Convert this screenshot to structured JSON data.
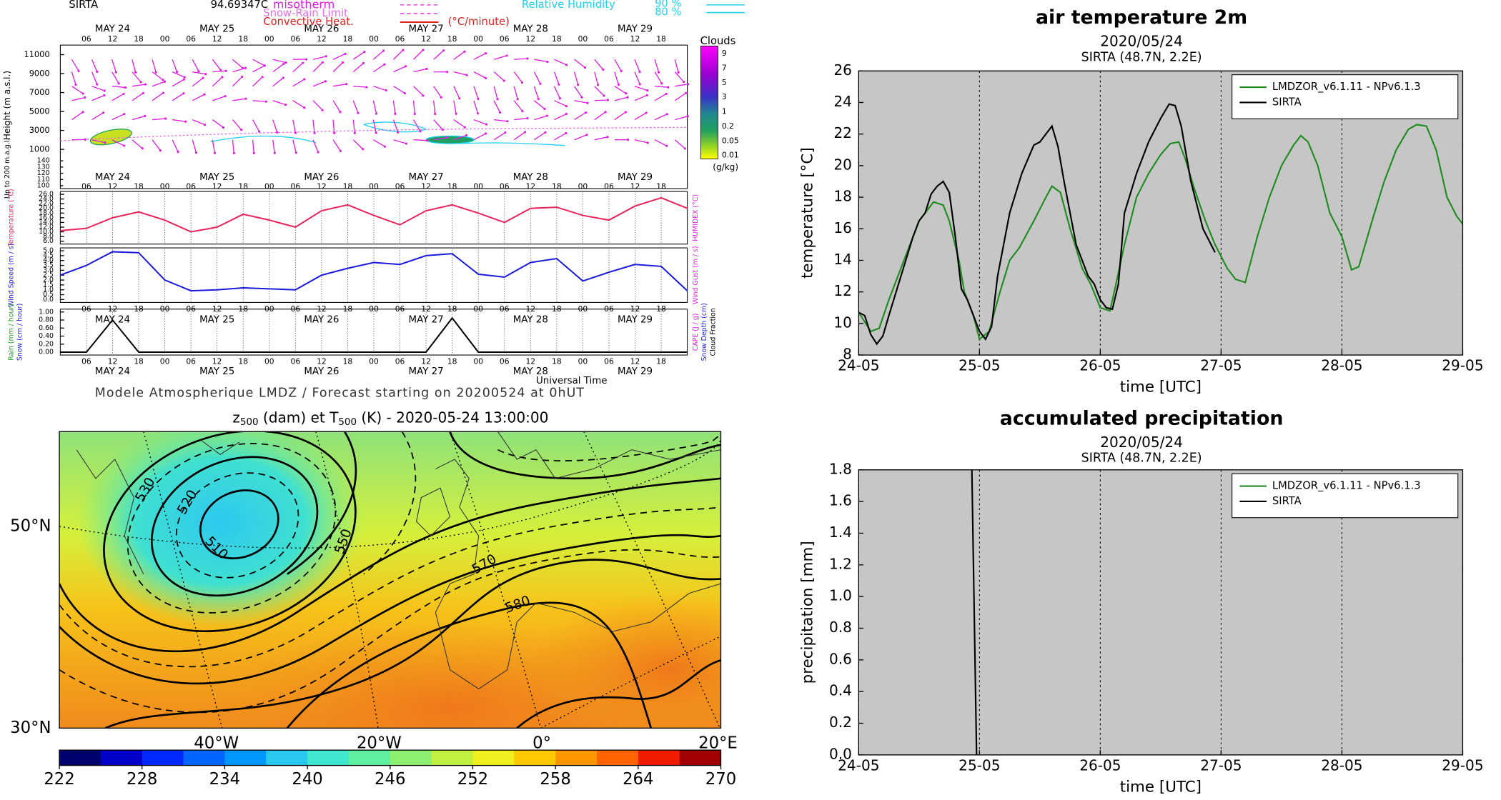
{
  "meteogram": {
    "station": "SIRTA",
    "code": "94.69347C",
    "legend": [
      "misotherm",
      "Snow-Rain Limit",
      "Convective Heat.",
      "(°C/minute)"
    ],
    "rh_legend": {
      "title": "Relative Humidity",
      "levels": [
        "90 %",
        "80 %"
      ]
    },
    "days": [
      "MAY 24",
      "MAY 25",
      "MAY 26",
      "MAY 27",
      "MAY 28",
      "MAY 29"
    ],
    "hours": [
      "06",
      "12",
      "18",
      "00"
    ],
    "height_label": "Height (m a.s.l.)",
    "low_height_label": "Up to 200 m.a.g.l.",
    "height_ticks": [
      11000,
      9000,
      7000,
      5000,
      3000,
      1000
    ],
    "low_height_ticks": [
      140,
      130,
      120,
      110,
      100
    ],
    "clouds": {
      "title": "Clouds",
      "ticks": [
        9,
        7,
        5,
        3,
        1,
        0.2,
        0.05,
        0.01
      ],
      "unit": "(g/kg)"
    },
    "x": [
      0,
      0.25,
      0.5,
      0.75,
      1,
      1.25,
      1.5,
      1.75,
      2,
      2.25,
      2.5,
      2.75,
      3,
      3.25,
      3.5,
      3.75,
      4,
      4.25,
      4.5,
      4.75,
      5,
      5.25,
      5.5,
      5.75,
      6
    ],
    "xlim": [
      0,
      6
    ],
    "temperature": {
      "label": "Temperature (°C)",
      "right_label": "HUMIDEX (°C)",
      "color": "#e8245a",
      "ylim": [
        6,
        26
      ],
      "yticks": [
        {
          "value": 26,
          "label": "26.0"
        },
        {
          "value": 24,
          "label": "24.0"
        },
        {
          "value": 22,
          "label": "22.0"
        },
        {
          "value": 20,
          "label": "20.0"
        },
        {
          "value": 18,
          "label": "18.0"
        },
        {
          "value": 16,
          "label": "16.0"
        },
        {
          "value": 14,
          "label": "14.0"
        },
        {
          "value": 12,
          "label": "12.0"
        },
        {
          "value": 10,
          "label": "10.0"
        },
        {
          "value": 8,
          "label": "8.0"
        },
        {
          "value": 6,
          "label": "6.0"
        }
      ],
      "values": [
        10.5,
        11.5,
        16,
        18.5,
        15,
        10,
        12,
        17.5,
        15,
        12,
        19,
        21.5,
        17,
        13,
        19,
        21.5,
        18,
        14,
        20,
        20.5,
        17,
        15,
        21,
        24.5,
        20
      ]
    },
    "wind": {
      "label": "Wind Speed (m / s)",
      "right_label": "Wind Gust (m / s)",
      "color": "#1a1adc",
      "ylim": [
        0,
        5
      ],
      "yticks": [
        {
          "value": 5,
          "label": "5.0"
        },
        {
          "value": 4.5,
          "label": "4.5"
        },
        {
          "value": 4,
          "label": "4.0"
        },
        {
          "value": 3.5,
          "label": "3.5"
        },
        {
          "value": 3,
          "label": "3.0"
        },
        {
          "value": 2.5,
          "label": "2.5"
        },
        {
          "value": 2,
          "label": "2.0"
        },
        {
          "value": 1.5,
          "label": "1.5"
        },
        {
          "value": 1,
          "label": "1.0"
        },
        {
          "value": 0.5,
          "label": "0.5"
        },
        {
          "value": 0,
          "label": "0.0"
        }
      ],
      "values": [
        2.5,
        3.5,
        4.9,
        4.8,
        2.0,
        0.9,
        1.0,
        1.2,
        1.1,
        1.0,
        2.5,
        3.2,
        3.8,
        3.6,
        4.5,
        4.7,
        2.6,
        2.3,
        3.8,
        4.2,
        1.9,
        2.8,
        3.6,
        3.4,
        0.9
      ]
    },
    "rain": {
      "label": "Rain (mm / hour)",
      "label2": "Snow (cm / hour)",
      "right_label": "CAPE (J / g)",
      "right_label2": "Snow Depth (cm)",
      "right_label3": "Cloud Fraction",
      "color": "#000000",
      "ylim": [
        0,
        1
      ],
      "yticks": [
        {
          "value": 1,
          "label": "1.00"
        },
        {
          "value": 0.8,
          "label": "0.80"
        },
        {
          "value": 0.6,
          "label": "0.60"
        },
        {
          "value": 0.4,
          "label": "0.40"
        },
        {
          "value": 0.2,
          "label": "0.20"
        },
        {
          "value": 0,
          "label": "0.00"
        }
      ],
      "values": [
        0,
        0,
        0.8,
        0,
        0,
        0,
        0,
        0,
        0,
        0,
        0,
        0,
        0,
        0,
        0,
        0.85,
        0,
        0,
        0,
        0,
        0,
        0,
        0,
        0,
        0
      ]
    },
    "xlabel": "Universal Time",
    "footer": "Modele Atmospherique LMDZ / Forecast starting on 20200524 at 0hUT"
  },
  "map": {
    "title": [
      "z",
      "500",
      " (dam) et T",
      "500",
      " (K) - 2020-05-24 13:00:00"
    ],
    "lat_labels": [
      "50°N",
      "30°N"
    ],
    "lon_labels": [
      "40°W",
      "20°W",
      "0°",
      "20°E"
    ],
    "contour_labels": [
      "530",
      "520",
      "510",
      "550",
      "570",
      "580"
    ],
    "colorbar": {
      "lim": [
        222,
        270
      ],
      "ticks": [
        222,
        228,
        234,
        240,
        246,
        252,
        258,
        264,
        270
      ],
      "colors": [
        "#00006e",
        "#0000c8",
        "#0028ff",
        "#0064ff",
        "#0096ff",
        "#28c8f0",
        "#40e6d0",
        "#5ef0a0",
        "#8df070",
        "#c0f040",
        "#f0f020",
        "#ffc800",
        "#ff9600",
        "#ff6400",
        "#f01c00",
        "#a00000"
      ]
    }
  },
  "chart_data": [
    {
      "type": "line",
      "title": "air temperature 2m",
      "subtitle": "2020/05/24",
      "subtitle2": "SIRTA (48.7N, 2.2E)",
      "xlabel": "time [UTC]",
      "ylabel": "temperature [°C]",
      "xlim": [
        0,
        5
      ],
      "xticks": [
        {
          "value": 0,
          "label": "24-05"
        },
        {
          "value": 1,
          "label": "25-05"
        },
        {
          "value": 2,
          "label": "26-05"
        },
        {
          "value": 3,
          "label": "27-05"
        },
        {
          "value": 4,
          "label": "28-05"
        },
        {
          "value": 5,
          "label": "29-05"
        }
      ],
      "ylim": [
        8,
        26
      ],
      "yticks": [
        8,
        10,
        12,
        14,
        16,
        18,
        20,
        22,
        24,
        26
      ],
      "grid": "x",
      "legend": "upper right",
      "series": [
        {
          "name": "LMDZOR_v6.1.11 - NPv6.1.3",
          "color": "#1e8c1e",
          "x": [
            0,
            0.1,
            0.17,
            0.25,
            0.375,
            0.45,
            0.5,
            0.58,
            0.62,
            0.7,
            0.75,
            0.83,
            0.875,
            0.95,
            1.0,
            1.08,
            1.17,
            1.25,
            1.33,
            1.45,
            1.55,
            1.6,
            1.67,
            1.75,
            1.85,
            1.92,
            2.0,
            2.08,
            2.13,
            2.2,
            2.3,
            2.4,
            2.5,
            2.58,
            2.65,
            2.7,
            2.78,
            2.87,
            2.95,
            3.05,
            3.12,
            3.2,
            3.3,
            3.4,
            3.5,
            3.6,
            3.66,
            3.72,
            3.8,
            3.9,
            4.0,
            4.08,
            4.14,
            4.25,
            4.35,
            4.45,
            4.55,
            4.62,
            4.7,
            4.78,
            4.87,
            4.95,
            5.0
          ],
          "values": [
            10.7,
            9.5,
            9.7,
            11.5,
            14,
            15.5,
            16.5,
            17.3,
            17.7,
            17.5,
            16.5,
            14,
            12,
            10.5,
            9,
            9.5,
            12,
            14,
            14.8,
            16.5,
            18,
            18.7,
            18.3,
            16,
            13.5,
            12.5,
            11,
            10.8,
            12.5,
            15,
            18,
            19.5,
            20.7,
            21.4,
            21.5,
            20.5,
            18.5,
            16.5,
            15,
            13.5,
            12.8,
            12.6,
            15.5,
            18,
            20,
            21.3,
            21.9,
            21.5,
            20,
            17,
            15.5,
            13.4,
            13.6,
            16.5,
            19,
            21,
            22.3,
            22.6,
            22.5,
            21,
            18,
            16.8,
            16.3
          ]
        },
        {
          "name": "SIRTA",
          "color": "#000000",
          "x": [
            0,
            0.05,
            0.1,
            0.15,
            0.2,
            0.25,
            0.35,
            0.45,
            0.5,
            0.55,
            0.6,
            0.65,
            0.7,
            0.75,
            0.8,
            0.85,
            0.9,
            0.95,
            1.0,
            1.05,
            1.1,
            1.15,
            1.25,
            1.35,
            1.45,
            1.5,
            1.55,
            1.6,
            1.65,
            1.7,
            1.8,
            1.9,
            1.95,
            2.0,
            2.05,
            2.1,
            2.15,
            2.2,
            2.3,
            2.4,
            2.5,
            2.57,
            2.62,
            2.67,
            2.75,
            2.85,
            2.95
          ],
          "values": [
            10.7,
            10.5,
            9.3,
            8.7,
            9.2,
            10.5,
            13,
            15.5,
            16.5,
            17,
            18.2,
            18.7,
            19,
            18.3,
            15.5,
            12.2,
            11.5,
            10.5,
            9.5,
            9,
            9.8,
            13,
            17,
            19.5,
            21.3,
            21.5,
            22,
            22.5,
            21.2,
            19,
            15,
            13,
            12.5,
            11.5,
            11,
            10.9,
            12.5,
            17,
            19.5,
            21.5,
            23,
            23.9,
            23.8,
            22.5,
            19,
            16,
            14.5
          ]
        }
      ]
    },
    {
      "type": "line",
      "title": "accumulated precipitation",
      "subtitle": "2020/05/24",
      "subtitle2": "SIRTA (48.7N, 2.2E)",
      "xlabel": "time [UTC]",
      "ylabel": "precipitation [mm]",
      "xlim": [
        0,
        5
      ],
      "xticks": [
        {
          "value": 0,
          "label": "24-05"
        },
        {
          "value": 1,
          "label": "25-05"
        },
        {
          "value": 2,
          "label": "26-05"
        },
        {
          "value": 3,
          "label": "27-05"
        },
        {
          "value": 4,
          "label": "28-05"
        },
        {
          "value": 5,
          "label": "29-05"
        }
      ],
      "ylim": [
        0,
        1.8
      ],
      "yticks": [
        {
          "value": 0,
          "label": "0.0"
        },
        0.2,
        0.4,
        0.6,
        0.8,
        {
          "value": 1,
          "label": "1.0"
        },
        1.2,
        1.4,
        1.6,
        1.8
      ],
      "grid": "x",
      "legend": "upper right",
      "series": [
        {
          "name": "LMDZOR_v6.1.11 - NPv6.1.3",
          "color": "#1e8c1e",
          "x": [],
          "values": []
        },
        {
          "name": "SIRTA",
          "color": "#000000",
          "x": [
            0.937,
            0.976
          ],
          "values": [
            1.8,
            0
          ]
        }
      ]
    }
  ]
}
